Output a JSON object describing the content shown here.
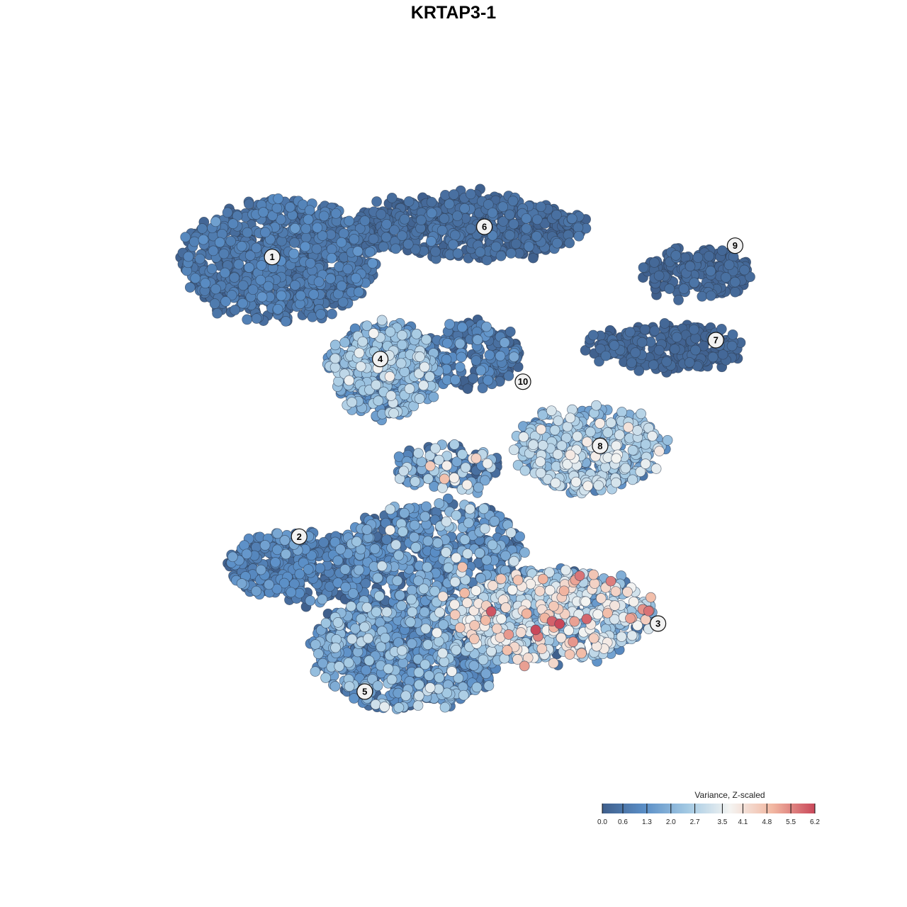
{
  "chart_data": {
    "type": "scatter",
    "title": "KRTAP3-1",
    "xlabel": "",
    "ylabel": "",
    "grid": false,
    "legend_placement": "bottom-right",
    "colorbar": {
      "title": "Variance, Z-scaled",
      "ticks": [
        "0.0",
        "0.6",
        "1.3",
        "2.0",
        "2.7",
        "3.5",
        "4.1",
        "4.8",
        "5.5",
        "6.2"
      ],
      "min": 0.0,
      "max": 6.2,
      "colors": [
        "#3f5f8c",
        "#5b8fc7",
        "#a3c9e3",
        "#f4f4f2",
        "#f2b8a2",
        "#c9485a"
      ]
    },
    "clusters": [
      {
        "label": "1",
        "cx": -4.5,
        "cy": 7.1,
        "rx": 2.5,
        "ry": 1.6,
        "n": 900,
        "mean": 0.45,
        "sd": 0.35
      },
      {
        "label": "6",
        "cx": 0.4,
        "cy": 8.0,
        "rx": 3.0,
        "ry": 0.8,
        "n": 620,
        "mean": 0.25,
        "sd": 0.25
      },
      {
        "label": "9",
        "cx": 6.3,
        "cy": 6.8,
        "rx": 1.4,
        "ry": 0.6,
        "n": 210,
        "mean": 0.15,
        "sd": 0.15
      },
      {
        "label": "7",
        "cx": 5.5,
        "cy": 4.8,
        "rx": 2.0,
        "ry": 0.6,
        "n": 260,
        "mean": 0.15,
        "sd": 0.15
      },
      {
        "label": "4",
        "cx": -1.8,
        "cy": 4.2,
        "rx": 1.4,
        "ry": 1.2,
        "n": 480,
        "mean": 1.7,
        "sd": 0.7
      },
      {
        "label": "10",
        "cx": 0.5,
        "cy": 4.6,
        "rx": 1.3,
        "ry": 0.9,
        "n": 170,
        "mean": 0.6,
        "sd": 0.5
      },
      {
        "label": "8",
        "cx": 3.5,
        "cy": 2.1,
        "rx": 1.9,
        "ry": 1.1,
        "n": 430,
        "mean": 2.3,
        "sd": 0.7
      },
      {
        "label": "2",
        "cx": -3.8,
        "cy": -1.0,
        "rx": 2.1,
        "ry": 0.9,
        "n": 430,
        "mean": 0.7,
        "sd": 0.5
      },
      {
        "label": "3",
        "cx": 2.6,
        "cy": -2.3,
        "rx": 2.6,
        "ry": 1.2,
        "n": 700,
        "mean": 2.5,
        "sd": 1.3
      },
      {
        "label": "5",
        "cx": -1.2,
        "cy": -3.2,
        "rx": 2.4,
        "ry": 1.6,
        "n": 900,
        "mean": 1.1,
        "sd": 0.9
      },
      {
        "label": "",
        "cx": -0.5,
        "cy": -0.5,
        "rx": 2.3,
        "ry": 1.2,
        "n": 500,
        "mean": 0.9,
        "sd": 0.9
      },
      {
        "label": "",
        "cx": -0.2,
        "cy": 1.6,
        "rx": 1.4,
        "ry": 0.6,
        "n": 120,
        "mean": 1.2,
        "sd": 1.4
      }
    ],
    "label_positions": [
      {
        "label": "1",
        "x": -4.7,
        "y": 7.2
      },
      {
        "label": "6",
        "x": 0.8,
        "y": 8.0
      },
      {
        "label": "9",
        "x": 7.3,
        "y": 7.5
      },
      {
        "label": "7",
        "x": 6.8,
        "y": 5.0
      },
      {
        "label": "4",
        "x": -1.9,
        "y": 4.5
      },
      {
        "label": "10",
        "x": 1.8,
        "y": 3.9
      },
      {
        "label": "8",
        "x": 3.8,
        "y": 2.2
      },
      {
        "label": "2",
        "x": -4.0,
        "y": -0.2
      },
      {
        "label": "3",
        "x": 5.3,
        "y": -2.5
      },
      {
        "label": "5",
        "x": -2.3,
        "y": -4.3
      }
    ],
    "xlim": [
      -9,
      9
    ],
    "ylim": [
      -7,
      11
    ]
  }
}
